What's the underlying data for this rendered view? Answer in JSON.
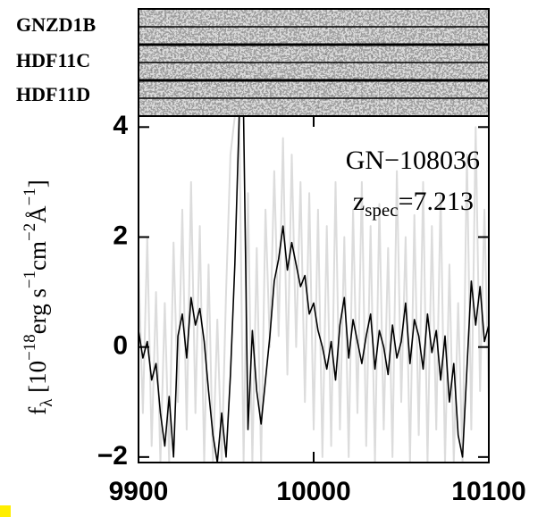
{
  "chart_data": {
    "type": "line",
    "strip_labels": [
      "GNZD1B",
      "HDF11C",
      "HDF11D"
    ],
    "annotation": [
      {
        "text": "GN−108036",
        "shift": "base"
      }
    ],
    "annotation2": [
      {
        "text": "z",
        "shift": "base"
      },
      {
        "text": "spec",
        "shift": "sub"
      },
      {
        "text": "=7.213",
        "shift": "base"
      }
    ],
    "ylabel": [
      {
        "text": "f",
        "shift": "base"
      },
      {
        "text": "λ",
        "shift": "sub"
      },
      {
        "text": " [10",
        "shift": "base"
      },
      {
        "text": "−18",
        "shift": "sup"
      },
      {
        "text": "erg s",
        "shift": "base"
      },
      {
        "text": "−1",
        "shift": "sup"
      },
      {
        "text": "cm",
        "shift": "base"
      },
      {
        "text": "−2",
        "shift": "sup"
      },
      {
        "text": "Å",
        "shift": "base"
      },
      {
        "text": "−1",
        "shift": "sup"
      },
      {
        "text": "]",
        "shift": "base"
      }
    ],
    "xlim": [
      9900,
      10100
    ],
    "xticks": [
      9900,
      10000,
      10100
    ],
    "ylim": [
      -2.1,
      4.2
    ],
    "yticks": [
      {
        "value": -2,
        "label": "−2"
      },
      0,
      2,
      4
    ],
    "x": [
      9900,
      9902.5,
      9905,
      9907.5,
      9910,
      9912.5,
      9915,
      9917.5,
      9920,
      9922.5,
      9925,
      9927.5,
      9930,
      9932.5,
      9935,
      9937.5,
      9940,
      9942.5,
      9945,
      9947.5,
      9950,
      9952.5,
      9955,
      9957.5,
      9960,
      9962.5,
      9965,
      9967.5,
      9970,
      9972.5,
      9975,
      9977.5,
      9980,
      9982.5,
      9985,
      9987.5,
      9990,
      9992.5,
      9995,
      9997.5,
      10000,
      10002.5,
      10005,
      10007.5,
      10010,
      10012.5,
      10015,
      10017.5,
      10020,
      10022.5,
      10025,
      10027.5,
      10030,
      10032.5,
      10035,
      10037.5,
      10040,
      10042.5,
      10045,
      10047.5,
      10050,
      10052.5,
      10055,
      10057.5,
      10060,
      10062.5,
      10065,
      10067.5,
      10070,
      10072.5,
      10075,
      10077.5,
      10080,
      10082.5,
      10085,
      10087.5,
      10090,
      10092.5,
      10095,
      10097.5,
      10100
    ],
    "series": [
      {
        "color": "#dcdcdc",
        "values": [
          1.5,
          -1.2,
          2.0,
          -1.8,
          1.0,
          -2.1,
          0.8,
          -2.1,
          1.9,
          -1.0,
          2.5,
          -1.5,
          3.0,
          -1.2,
          2.2,
          -2.1,
          1.5,
          -2.1,
          0.5,
          -2.1,
          1.0,
          3.5,
          4.2,
          4.2,
          -2.1,
          2.8,
          -2.1,
          1.8,
          -2.1,
          2.5,
          0.0,
          3.2,
          0.2,
          3.8,
          -0.5,
          3.5,
          0.0,
          3.0,
          -1.0,
          2.8,
          -1.5,
          2.5,
          -2.0,
          2.2,
          -1.8,
          3.0,
          -1.5,
          2.0,
          -2.0,
          2.5,
          -1.2,
          3.0,
          -1.8,
          2.2,
          -2.1,
          2.6,
          -1.5,
          1.8,
          -2.0,
          3.2,
          -1.0,
          2.0,
          -2.1,
          2.4,
          -1.6,
          3.0,
          -2.1,
          2.2,
          -1.5,
          2.8,
          -2.1,
          1.5,
          -2.1,
          0.8,
          -2.1,
          3.5,
          -1.5,
          4.0,
          -0.8,
          2.5,
          -1.0
        ]
      },
      {
        "color": "#000000",
        "values": [
          0.3,
          -0.2,
          0.1,
          -0.6,
          -0.3,
          -1.2,
          -1.8,
          -0.9,
          -2.0,
          0.2,
          0.6,
          -0.2,
          0.9,
          0.4,
          0.7,
          0.1,
          -0.8,
          -1.6,
          -2.1,
          -1.2,
          -2.0,
          -0.5,
          1.5,
          4.2,
          4.2,
          -1.5,
          0.3,
          -0.8,
          -1.4,
          -0.6,
          0.2,
          1.2,
          1.6,
          2.2,
          1.4,
          1.9,
          1.5,
          1.1,
          1.3,
          0.6,
          0.8,
          0.3,
          0.0,
          -0.4,
          0.1,
          -0.6,
          0.4,
          0.9,
          -0.2,
          0.5,
          0.1,
          -0.3,
          0.2,
          0.6,
          -0.4,
          0.3,
          0.0,
          -0.5,
          0.4,
          -0.2,
          0.1,
          0.8,
          -0.3,
          0.5,
          0.2,
          -0.4,
          0.6,
          -0.1,
          0.3,
          -0.6,
          0.2,
          -1.0,
          -0.3,
          -1.6,
          -2.0,
          -0.4,
          1.2,
          0.4,
          1.1,
          0.1,
          0.4
        ]
      }
    ]
  }
}
